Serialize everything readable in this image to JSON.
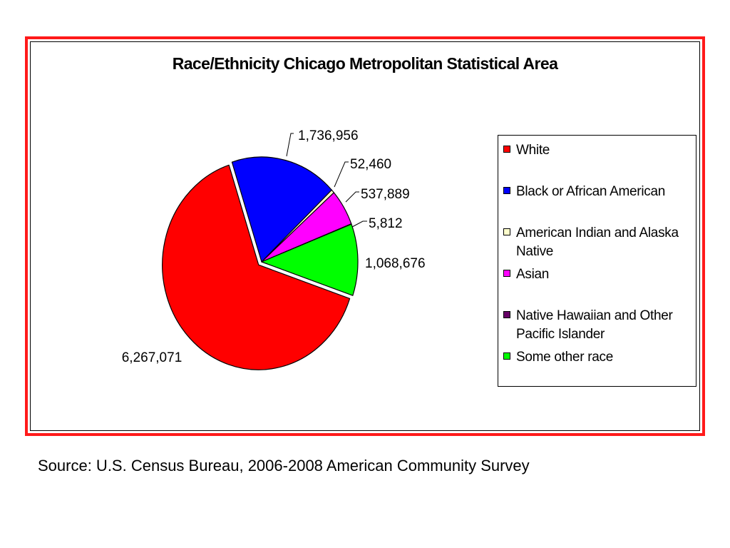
{
  "chart_data": {
    "type": "pie",
    "title": "Race/Ethnicity Chicago Metropolitan Statistical Area",
    "categories": [
      "White",
      "Black or African American",
      "American Indian and Alaska Native",
      "Asian",
      "Native Hawaiian and Other Pacific Islander",
      "Some other race"
    ],
    "values": [
      6267071,
      1736956,
      52460,
      537889,
      5812,
      1068676
    ],
    "data_labels": [
      "6,267,071",
      "1,736,956",
      "52,460",
      "537,889",
      "5,812",
      "1,068,676"
    ],
    "colors": [
      "#ff0000",
      "#0000ff",
      "#ffffcc",
      "#ff00ff",
      "#660066",
      "#00ff00"
    ],
    "exploded_slice": "White",
    "legend": {
      "placement": "right"
    }
  },
  "source": "Source: U.S. Census Bureau, 2006-2008 American Community Survey"
}
